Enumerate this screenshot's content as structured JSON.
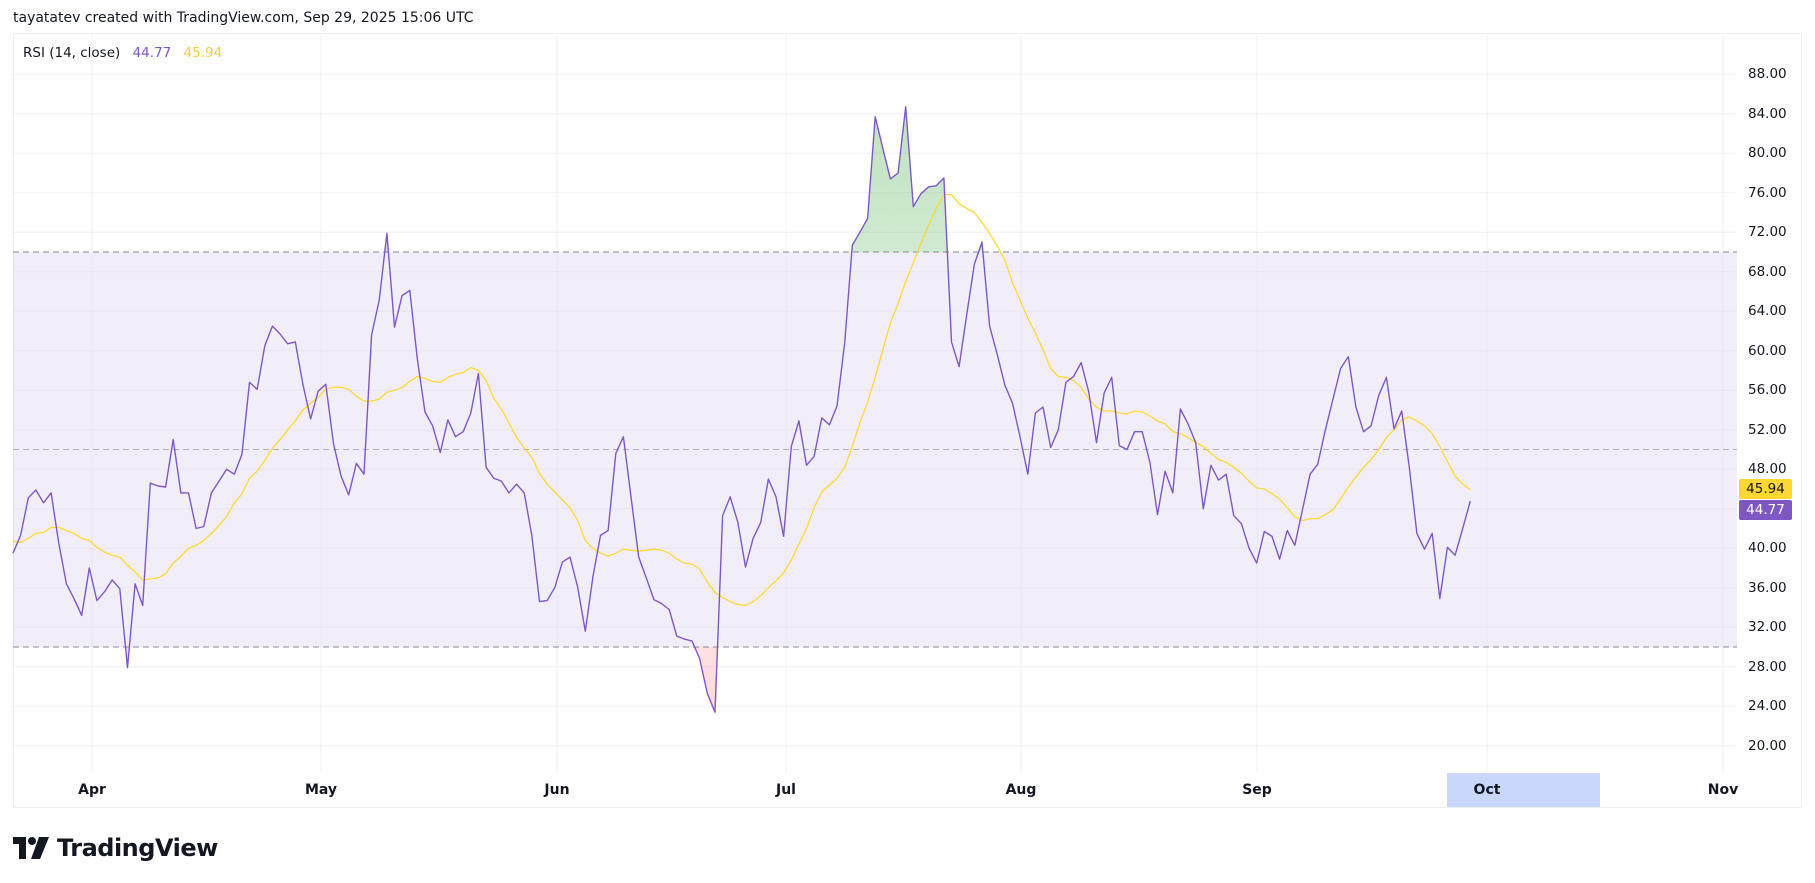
{
  "header": {
    "attribution": "tayatatev created with TradingView.com, Sep 29, 2025 15:06 UTC"
  },
  "legend": {
    "name": "RSI (14, close)",
    "rsi_value": "44.77",
    "ma_value": "45.94"
  },
  "price_axis": {
    "labels": [
      "88.00",
      "84.00",
      "80.00",
      "76.00",
      "72.00",
      "68.00",
      "64.00",
      "60.00",
      "56.00",
      "52.00",
      "48.00",
      "44.00",
      "40.00",
      "36.00",
      "32.00",
      "28.00",
      "24.00",
      "20.00"
    ]
  },
  "time_axis": {
    "labels": [
      "Apr",
      "May",
      "Jun",
      "Jul",
      "Aug",
      "Sep",
      "Oct",
      "Nov"
    ],
    "highlighted": "Oct"
  },
  "badges": {
    "ma": "45.94",
    "rsi": "44.77"
  },
  "footer": {
    "brand": "TradingView"
  },
  "colors": {
    "rsi": "#7e57c2",
    "ma": "#fdd835",
    "band_fill": "#7e57c2",
    "overbought_fill": "#4caf50",
    "oversold_fill": "#f23645",
    "band_line": "#787b86"
  },
  "chart_data": {
    "type": "line",
    "title": "RSI (14, close)",
    "xlabel": "",
    "ylabel": "",
    "ylim": [
      18,
      90
    ],
    "grid": true,
    "x_ticks": [
      "Apr",
      "May",
      "Jun",
      "Jul",
      "Aug",
      "Sep",
      "Oct",
      "Nov"
    ],
    "y_ticks": [
      88,
      84,
      80,
      76,
      72,
      68,
      64,
      60,
      56,
      52,
      48,
      44,
      40,
      36,
      32,
      28,
      24,
      20
    ],
    "bands": {
      "upper": 70,
      "middle": 50,
      "lower": 30
    },
    "x_range": "daily, ~Mar 22 2025 to Sep 29 2025",
    "series": [
      {
        "name": "RSI",
        "color": "#7e57c2",
        "last": 44.77,
        "values": [
          39.5,
          41.3,
          45.1,
          45.9,
          44.6,
          45.6,
          40.5,
          36.4,
          34.9,
          33.2,
          38.0,
          34.7,
          35.6,
          36.8,
          35.9,
          27.9,
          36.4,
          34.2,
          46.6,
          46.3,
          46.2,
          51.0,
          45.6,
          45.6,
          42.0,
          42.2,
          45.6,
          46.8,
          48.0,
          47.5,
          49.5,
          56.8,
          56.1,
          60.5,
          62.5,
          61.7,
          60.7,
          60.9,
          56.6,
          53.1,
          55.9,
          56.6,
          50.6,
          47.3,
          45.4,
          48.6,
          47.5,
          61.6,
          65.1,
          71.9,
          62.4,
          65.6,
          66.1,
          59.1,
          53.8,
          52.4,
          49.7,
          53.0,
          51.3,
          51.8,
          53.7,
          57.7,
          48.2,
          47.1,
          46.8,
          45.6,
          46.5,
          45.6,
          41.3,
          34.6,
          34.7,
          36.0,
          38.6,
          39.1,
          36.1,
          31.6,
          37.1,
          41.3,
          41.8,
          49.6,
          51.3,
          45.2,
          39.1,
          37.0,
          34.8,
          34.4,
          33.8,
          31.1,
          30.8,
          30.6,
          28.8,
          25.3,
          23.4,
          43.3,
          45.2,
          42.6,
          38.1,
          41.0,
          42.6,
          47.0,
          45.2,
          41.2,
          50.3,
          52.9,
          48.4,
          49.3,
          53.2,
          52.5,
          54.4,
          60.8,
          70.7,
          72.0,
          73.4,
          83.7,
          80.5,
          77.4,
          78.0,
          84.7,
          74.6,
          75.9,
          76.6,
          76.7,
          77.5,
          60.9,
          58.4,
          63.7,
          68.8,
          71.0,
          62.5,
          59.6,
          56.5,
          54.7,
          51.2,
          47.5,
          53.7,
          54.3,
          50.2,
          52.0,
          56.8,
          57.4,
          58.8,
          55.8,
          50.7,
          55.7,
          57.3,
          50.4,
          50.0,
          51.8,
          51.8,
          48.7,
          43.4,
          47.8,
          45.6,
          54.1,
          52.6,
          50.7,
          44.0,
          48.4,
          46.9,
          47.5,
          43.3,
          42.5,
          40.0,
          38.5,
          41.7,
          41.2,
          38.9,
          41.8,
          40.3,
          43.9,
          47.5,
          48.5,
          52.0,
          55.1,
          58.2,
          59.4,
          54.3,
          51.8,
          52.4,
          55.5,
          57.3,
          52.1,
          53.9,
          48.2,
          41.5,
          39.9,
          41.5,
          34.9,
          40.1,
          39.3,
          42.0,
          44.77
        ]
      },
      {
        "name": "RSI-based MA",
        "color": "#fdd835",
        "last": 45.94,
        "values": [
          40.7,
          40.6,
          41.0,
          41.5,
          41.6,
          42.1,
          42.1,
          41.8,
          41.5,
          41.0,
          40.8,
          40.1,
          39.6,
          39.3,
          39.1,
          38.3,
          37.6,
          36.8,
          36.9,
          37.0,
          37.4,
          38.5,
          39.2,
          40.0,
          40.3,
          40.8,
          41.5,
          42.3,
          43.2,
          44.6,
          45.5,
          47.1,
          47.8,
          48.9,
          50.1,
          51.0,
          52.0,
          52.9,
          54.0,
          54.7,
          55.3,
          56.1,
          56.3,
          56.3,
          56.1,
          55.4,
          54.9,
          54.9,
          55.1,
          55.8,
          56.0,
          56.3,
          56.9,
          57.4,
          57.2,
          56.9,
          56.8,
          57.3,
          57.6,
          57.8,
          58.3,
          58.0,
          57.0,
          55.2,
          54.1,
          52.7,
          51.2,
          50.2,
          49.2,
          47.6,
          46.5,
          45.7,
          44.9,
          44.1,
          42.8,
          40.8,
          40.0,
          39.5,
          39.2,
          39.5,
          39.9,
          39.8,
          39.7,
          39.8,
          39.9,
          39.8,
          39.5,
          38.9,
          38.5,
          38.4,
          37.9,
          36.6,
          35.5,
          35.0,
          34.6,
          34.3,
          34.2,
          34.6,
          35.2,
          36.0,
          36.7,
          37.5,
          38.8,
          40.4,
          42.0,
          44.1,
          45.7,
          46.4,
          47.1,
          48.2,
          50.3,
          52.7,
          54.8,
          57.3,
          60.1,
          62.8,
          64.8,
          67.0,
          68.9,
          70.9,
          72.7,
          74.4,
          75.8,
          75.8,
          74.9,
          74.4,
          74.0,
          73.0,
          71.9,
          70.6,
          69.2,
          66.9,
          65.1,
          63.3,
          61.8,
          60.1,
          58.2,
          57.4,
          57.3,
          57.0,
          56.3,
          55.1,
          54.3,
          53.9,
          53.9,
          53.7,
          53.6,
          53.9,
          53.8,
          53.4,
          52.9,
          52.6,
          51.8,
          51.6,
          51.2,
          50.7,
          50.3,
          49.6,
          49.0,
          48.7,
          48.2,
          47.6,
          46.8,
          46.1,
          46.0,
          45.5,
          45.0,
          44.1,
          43.2,
          42.8,
          43.0,
          43.0,
          43.4,
          43.9,
          45.0,
          46.2,
          47.2,
          48.2,
          49.0,
          50.0,
          51.2,
          52.0,
          53.0,
          53.3,
          52.9,
          52.4,
          51.6,
          50.3,
          48.8,
          47.3,
          46.5,
          45.94
        ]
      }
    ]
  }
}
